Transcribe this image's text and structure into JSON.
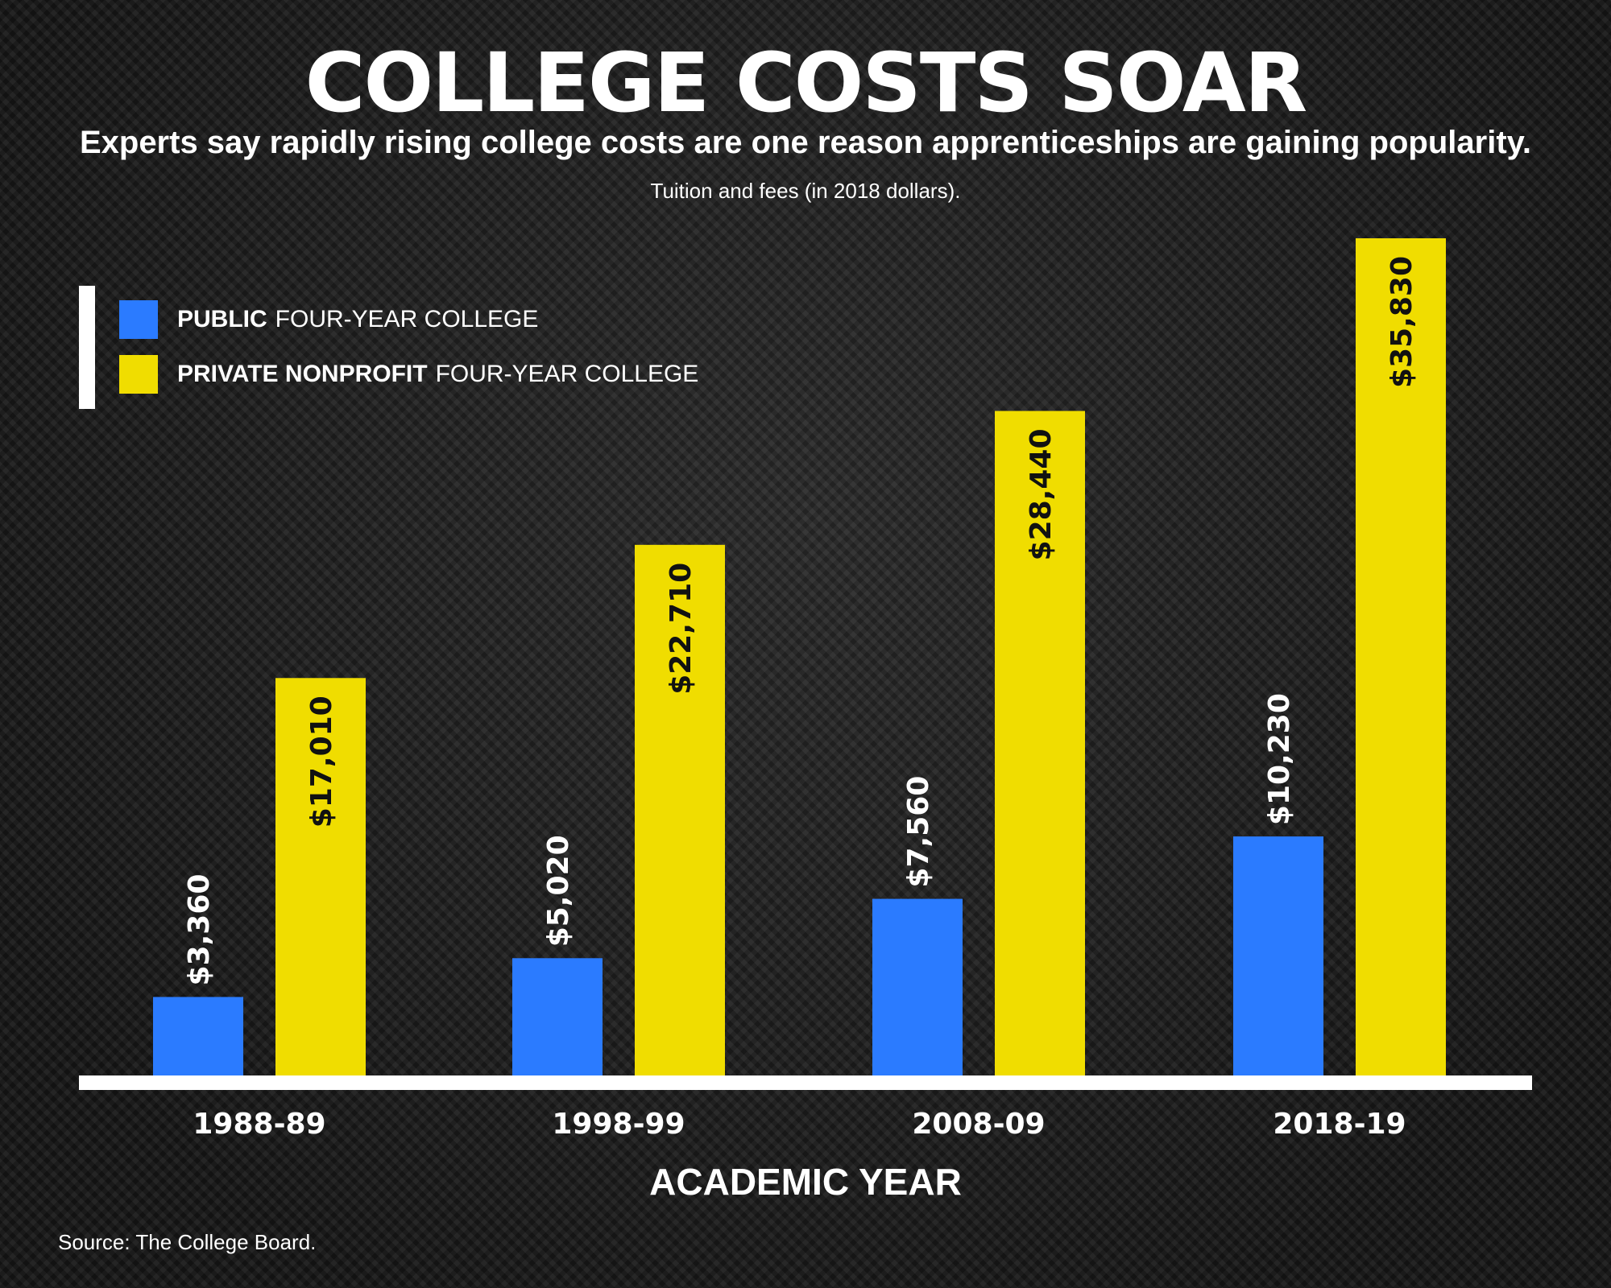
{
  "header": {
    "title": "COLLEGE COSTS SOAR",
    "subtitle": "Experts say rapidly rising college costs are one reason apprenticeships are gaining popularity.",
    "note": "Tuition and fees (in 2018 dollars)."
  },
  "legend": {
    "placement": "top-left",
    "items": [
      {
        "bold": "PUBLIC",
        "rest": "FOUR-YEAR COLLEGE",
        "color": "#2b7bff"
      },
      {
        "bold": "PRIVATE NONPROFIT",
        "rest": "FOUR-YEAR COLLEGE",
        "color": "#f0dd00"
      }
    ]
  },
  "source": "Source: The College Board.",
  "chart_data": {
    "type": "bar",
    "xlabel": "ACADEMIC YEAR",
    "ylabel": "",
    "categories": [
      "1988-89",
      "1998-99",
      "2008-09",
      "2018-19"
    ],
    "series": [
      {
        "name": "PUBLIC FOUR-YEAR COLLEGE",
        "color": "#2b7bff",
        "values": [
          3360,
          5020,
          7560,
          10230
        ],
        "labels": [
          "$3,360",
          "$5,020",
          "$7,560",
          "$10,230"
        ]
      },
      {
        "name": "PRIVATE NONPROFIT FOUR-YEAR COLLEGE",
        "color": "#f0dd00",
        "values": [
          17010,
          22710,
          28440,
          35830
        ],
        "labels": [
          "$17,010",
          "$22,710",
          "$28,440",
          "$35,830"
        ]
      }
    ],
    "ylim": [
      0,
      36000
    ],
    "grid": false,
    "legend_position": "top-left",
    "colors": {
      "baseline": "#ffffff",
      "label_on_dark": "#ffffff",
      "label_on_bar": "#111111"
    }
  }
}
